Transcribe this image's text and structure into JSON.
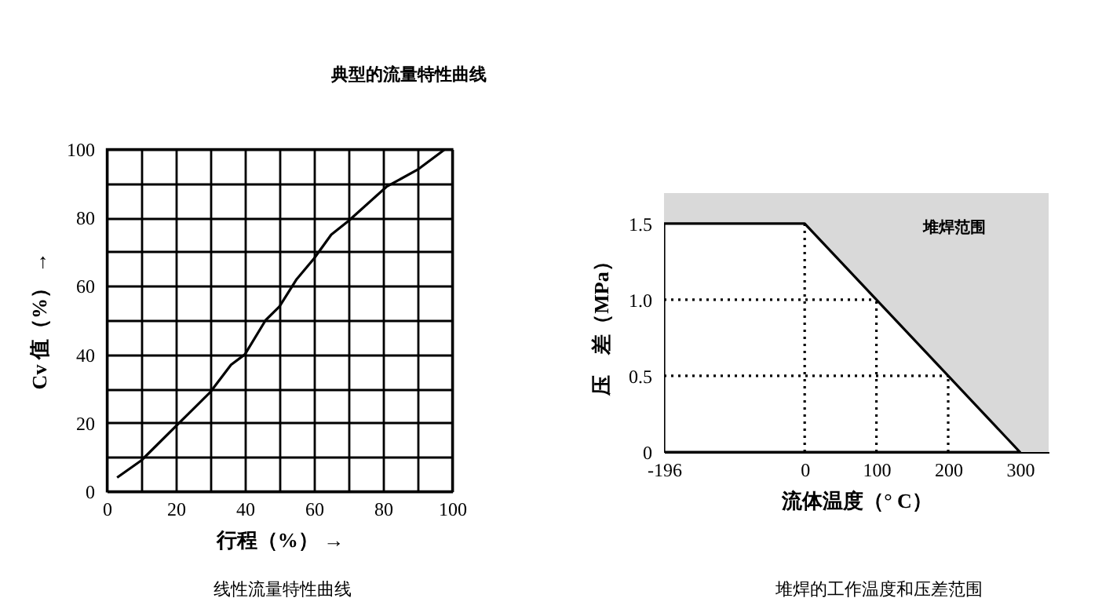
{
  "chart_data": [
    {
      "type": "line",
      "title": "典型的流量特性曲线",
      "xlabel": "行程（%） →",
      "ylabel": "Cv 值（%） →",
      "x": [
        3,
        10,
        20,
        30,
        36,
        40,
        46,
        50,
        55,
        60,
        65,
        70,
        81,
        90,
        98
      ],
      "values": [
        4,
        9,
        19,
        29,
        37,
        40,
        50,
        54,
        62,
        68,
        75,
        79,
        89,
        94,
        100
      ],
      "color": "#000000",
      "xlim": [
        0,
        100
      ],
      "ylim": [
        0,
        100
      ],
      "xticks": [
        0,
        {
          "value": 10,
          "label": null
        },
        20,
        {
          "value": 30,
          "label": null
        },
        40,
        {
          "value": 50,
          "label": null
        },
        60,
        {
          "value": 70,
          "label": null
        },
        80,
        {
          "value": 90,
          "label": null
        },
        100
      ],
      "yticks": [
        0,
        {
          "value": 10,
          "label": null
        },
        20,
        {
          "value": 30,
          "label": null
        },
        40,
        {
          "value": 50,
          "label": null
        },
        60,
        {
          "value": 70,
          "label": null
        },
        80,
        {
          "value": 90,
          "label": null
        },
        100
      ],
      "grid": true,
      "annotations": [
        "线性流量特性曲线"
      ]
    },
    {
      "type": "line",
      "xlabel": "流体温度（° C）",
      "ylabel": "压　差（MPa）",
      "series": [
        {
          "type": "area",
          "color": "#ffffff",
          "x": [
            -196,
            0,
            100,
            200,
            300
          ],
          "values": [
            1.5,
            1.5,
            1.0,
            0.5,
            0
          ]
        },
        {
          "color": "#000000",
          "line_style": "dotted",
          "x": [
            0,
            0
          ],
          "values": [
            0,
            1.5
          ]
        },
        {
          "color": "#000000",
          "line_style": "dotted",
          "x": [
            -196,
            100
          ],
          "values": [
            1.0,
            1.0
          ]
        },
        {
          "color": "#000000",
          "line_style": "dotted",
          "x": [
            100,
            100
          ],
          "values": [
            0,
            1.0
          ]
        },
        {
          "color": "#000000",
          "line_style": "dotted",
          "x": [
            -196,
            200
          ],
          "values": [
            0.5,
            0.5
          ]
        },
        {
          "color": "#000000",
          "line_style": "dotted",
          "x": [
            200,
            200
          ],
          "values": [
            0,
            0.5
          ]
        }
      ],
      "xlim": [
        -196,
        340
      ],
      "ylim": [
        0,
        1.7
      ],
      "xticks": [
        -196,
        0,
        100,
        200,
        300
      ],
      "yticks": [
        0,
        {
          "value": 0.5,
          "label": "0.5"
        },
        {
          "value": 1,
          "label": "1.0"
        },
        {
          "value": 1.5,
          "label": "1.5"
        }
      ],
      "grid": false,
      "bands": [
        {
          "axis": "y",
          "from": 0,
          "to": 1.7,
          "label": "堆焊范围",
          "color": "#d9d9d9"
        }
      ],
      "annotations": [
        "堆焊的工作温度和压差范围"
      ]
    }
  ]
}
